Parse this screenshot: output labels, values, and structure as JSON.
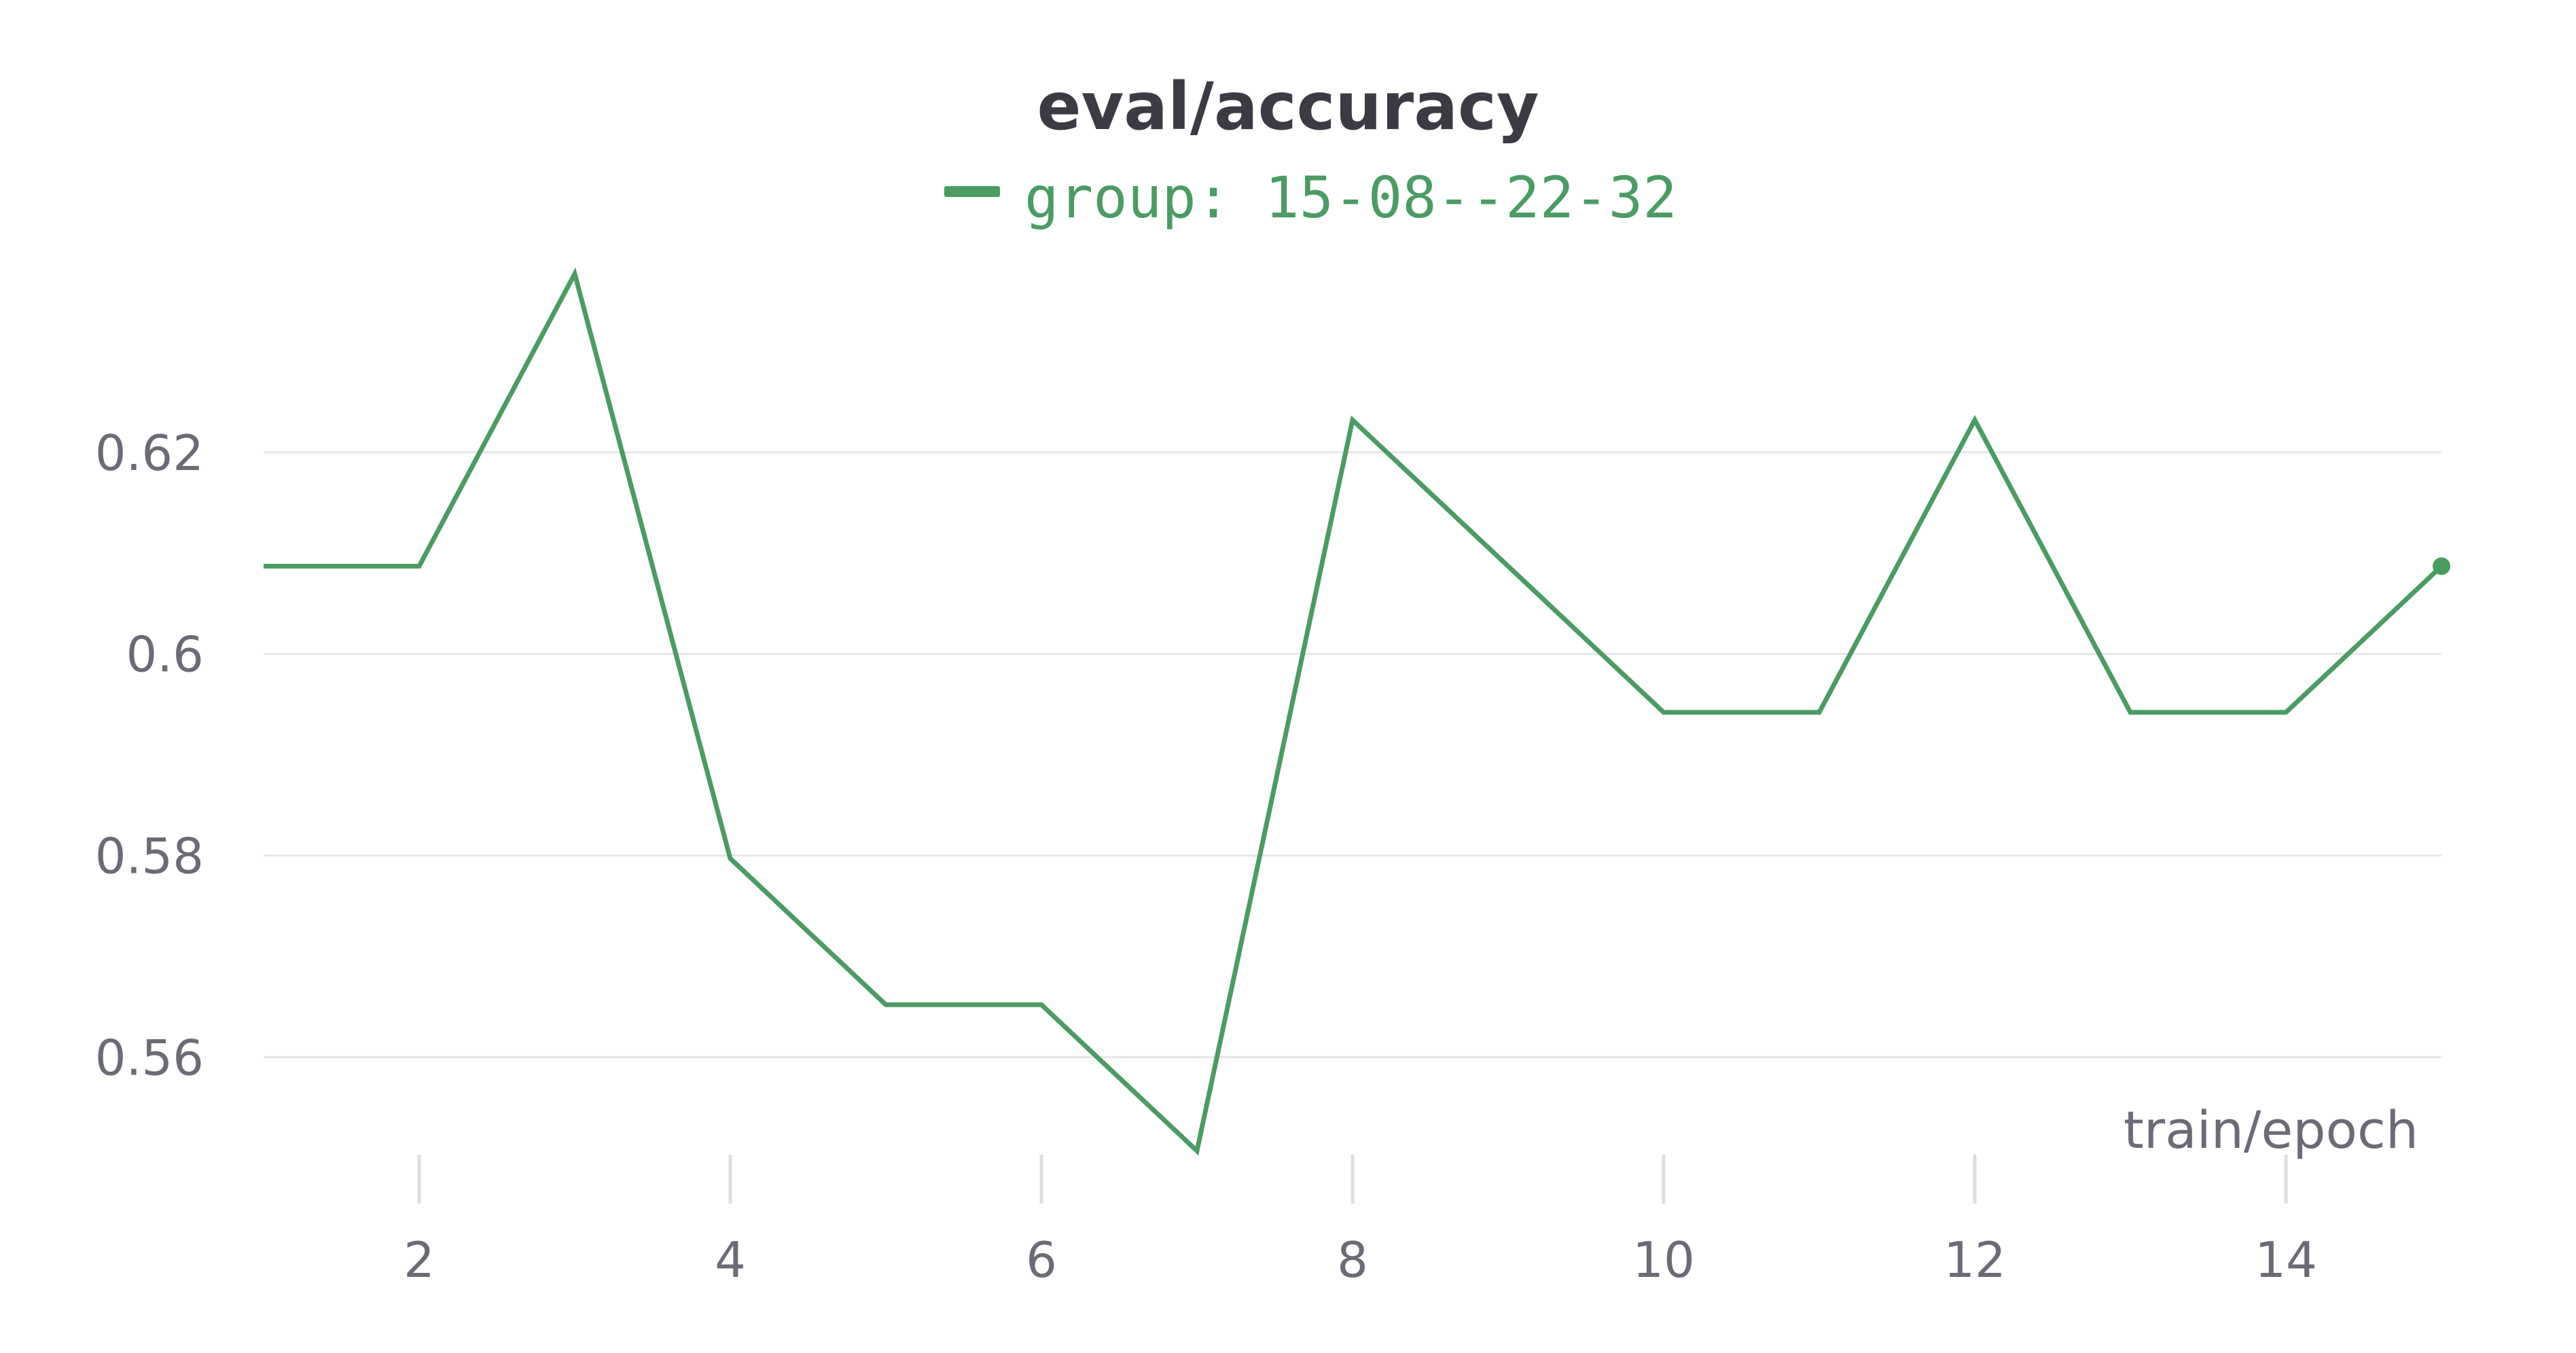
{
  "colors": {
    "series": "#4a9c62",
    "grid": "#e6e6e9",
    "tick_mark": "#dedee2",
    "text": "#3b3b44",
    "muted_text": "#6b6b76"
  },
  "chart_data": {
    "type": "line",
    "title": "eval/accuracy",
    "xlabel": "train/epoch",
    "ylabel": "",
    "legend_position": "top-center",
    "grid": "horizontal",
    "xlim": [
      1,
      15
    ],
    "ylim": [
      0.5483,
      0.6398
    ],
    "x_ticks": [
      2,
      4,
      6,
      8,
      10,
      12,
      14
    ],
    "y_ticks": [
      0.56,
      0.58,
      0.6,
      0.62
    ],
    "y_tick_labels": [
      "0.56",
      "0.58",
      "0.6",
      "0.62"
    ],
    "series": [
      {
        "name": "group: 15-08--22-32",
        "color": "#4a9c62",
        "x": [
          1,
          2,
          3,
          4,
          5,
          6,
          7,
          8,
          9,
          10,
          11,
          12,
          13,
          14,
          15
        ],
        "values": [
          0.6087,
          0.6087,
          0.6377,
          0.5797,
          0.5652,
          0.5652,
          0.5507,
          0.6232,
          0.6087,
          0.5942,
          0.5942,
          0.6232,
          0.5942,
          0.5942,
          0.6087
        ]
      }
    ]
  }
}
